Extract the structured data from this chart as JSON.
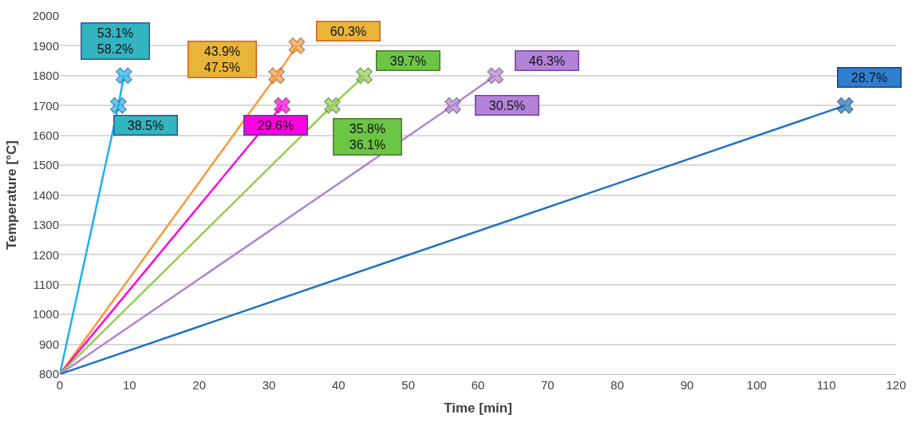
{
  "chart_data": {
    "type": "line",
    "xlabel": "Time [min]",
    "ylabel": "Temperature [°C]",
    "xlim": [
      0,
      120
    ],
    "xticks": [
      0,
      10,
      20,
      30,
      40,
      50,
      60,
      70,
      80,
      90,
      100,
      110,
      120
    ],
    "ylim": [
      800,
      2000
    ],
    "yticks": [
      800,
      900,
      1000,
      1100,
      1200,
      1300,
      1400,
      1500,
      1600,
      1700,
      1800,
      1900,
      2000
    ],
    "grid": "y",
    "marker": "cross",
    "series": [
      {
        "color": "#1cb0f0",
        "x": [
          0,
          8.4,
          9.2
        ],
        "values": [
          800,
          1700,
          1800
        ]
      },
      {
        "color": "#f79a3a",
        "x": [
          0,
          31.1,
          34.0
        ],
        "values": [
          800,
          1800,
          1900
        ]
      },
      {
        "color": "#ff00e0",
        "x": [
          0,
          31.9
        ],
        "values": [
          800,
          1700
        ]
      },
      {
        "color": "#92d050",
        "x": [
          0,
          39.1,
          43.7
        ],
        "values": [
          800,
          1700,
          1800
        ]
      },
      {
        "color": "#b383d0",
        "x": [
          0,
          56.4,
          62.5
        ],
        "values": [
          800,
          1700,
          1800
        ]
      },
      {
        "color": "#1f72c0",
        "x": [
          0,
          112.7
        ],
        "values": [
          800,
          1700
        ]
      }
    ],
    "annotations": [
      {
        "text": "53.1%\n58.2%",
        "x": 9.2,
        "y": 1800
      },
      {
        "text": "38.5%",
        "x": 8.4,
        "y": 1700
      },
      {
        "text": "43.9%\n47.5%",
        "x": 31.1,
        "y": 1800
      },
      {
        "text": "60.3%",
        "x": 34.0,
        "y": 1900
      },
      {
        "text": "29.6%",
        "x": 31.9,
        "y": 1700
      },
      {
        "text": "39.7%",
        "x": 43.7,
        "y": 1800
      },
      {
        "text": "35.8%\n36.1%",
        "x": 39.1,
        "y": 1700
      },
      {
        "text": "46.3%",
        "x": 62.5,
        "y": 1800
      },
      {
        "text": "30.5%",
        "x": 56.4,
        "y": 1700
      },
      {
        "text": "28.7%",
        "x": 112.7,
        "y": 1700
      }
    ]
  }
}
